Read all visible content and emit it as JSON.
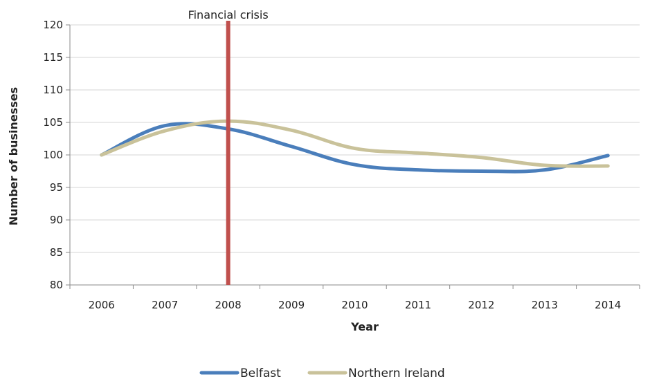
{
  "chart_data": {
    "type": "line",
    "xlabel": "Year",
    "ylabel": "Number of businesses",
    "ylim": [
      80,
      120
    ],
    "yticks": [
      80,
      85,
      90,
      95,
      100,
      105,
      110,
      115,
      120
    ],
    "categories": [
      "2006",
      "2007",
      "2008",
      "2009",
      "2010",
      "2011",
      "2012",
      "2013",
      "2014"
    ],
    "series": [
      {
        "name": "Belfast",
        "color": "#4a7ebb",
        "values": [
          100,
          104.5,
          104.0,
          101.3,
          98.5,
          97.7,
          97.5,
          97.7,
          99.9
        ]
      },
      {
        "name": "Northern Ireland",
        "color": "#c9c29a",
        "values": [
          100,
          103.7,
          105.2,
          103.8,
          101.0,
          100.3,
          99.6,
          98.4,
          98.3
        ]
      }
    ],
    "annotation": {
      "label": "Financial crisis",
      "x": "2008",
      "color": "#c0504d"
    },
    "grid": "horizontal",
    "legend": "bottom-center"
  }
}
